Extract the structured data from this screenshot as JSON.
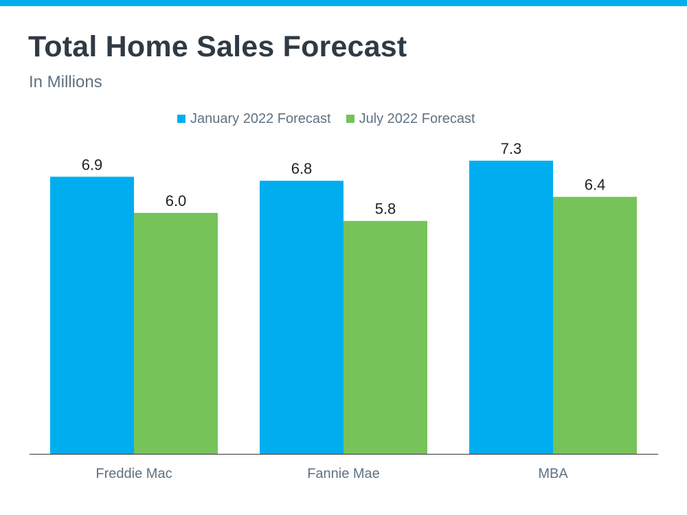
{
  "header": {
    "title": "Total Home Sales Forecast",
    "subtitle": "In Millions"
  },
  "colors": {
    "accent_bar": "#00aeef",
    "title": "#2f3a44",
    "series_1": "#00aeef",
    "series_2": "#76c35a"
  },
  "chart_data": {
    "type": "bar",
    "title": "Total Home Sales Forecast",
    "subtitle": "In Millions",
    "xlabel": "",
    "ylabel": "",
    "categories": [
      "Freddie Mac",
      "Fannie Mae",
      "MBA"
    ],
    "series": [
      {
        "name": "January 2022 Forecast",
        "values": [
          6.9,
          6.8,
          7.3
        ],
        "color": "#00aeef"
      },
      {
        "name": "July 2022 Forecast",
        "values": [
          6.0,
          5.8,
          6.4
        ],
        "color": "#76c35a"
      }
    ],
    "value_labels": [
      [
        "6.9",
        "6.8",
        "7.3"
      ],
      [
        "6.0",
        "5.8",
        "6.4"
      ]
    ],
    "ylim": [
      0,
      7.3
    ],
    "grid": false,
    "legend": "top-center",
    "data_labels": true
  }
}
